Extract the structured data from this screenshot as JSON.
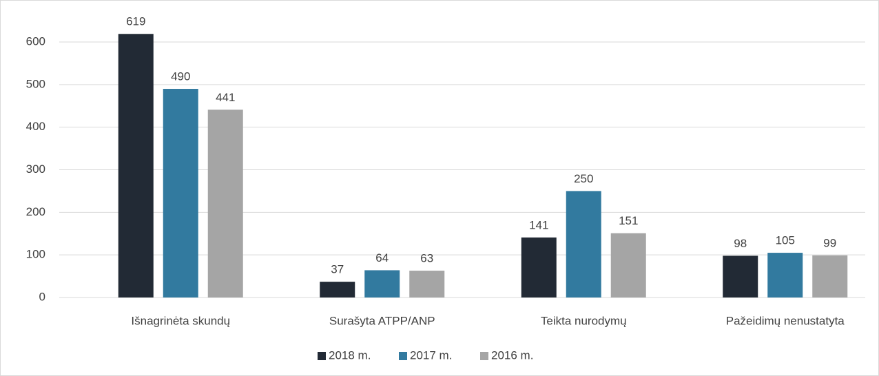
{
  "chart_data": {
    "type": "bar",
    "categories": [
      "Išnagrinėta skundų",
      "Surašyta ATPP/ANP",
      "Teikta nurodymų",
      "Pažeidimų nenustatyta"
    ],
    "series": [
      {
        "name": "2018 m.",
        "color": "#222a35",
        "values": [
          619,
          37,
          141,
          98
        ]
      },
      {
        "name": "2017 m.",
        "color": "#327a9f",
        "values": [
          490,
          64,
          250,
          105
        ]
      },
      {
        "name": "2016 m.",
        "color": "#a5a5a5",
        "values": [
          441,
          63,
          151,
          99
        ]
      }
    ],
    "ylim": [
      0,
      600
    ],
    "yticks": [
      0,
      100,
      200,
      300,
      400,
      500,
      600
    ],
    "grid": true,
    "legend": "bottom"
  }
}
